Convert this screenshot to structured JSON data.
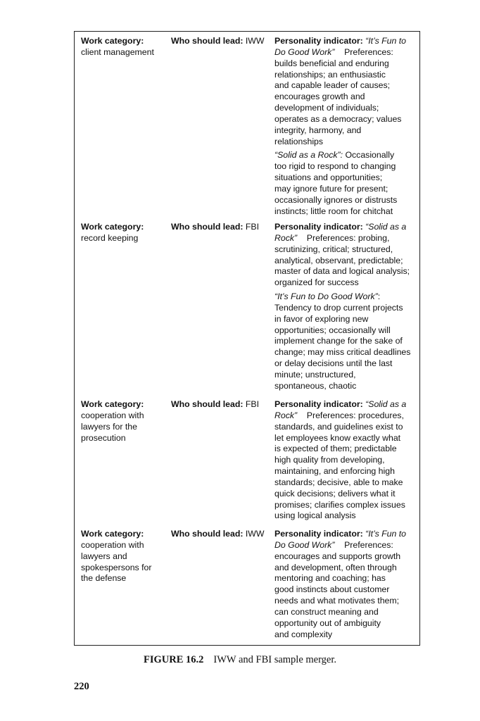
{
  "rows": [
    {
      "category_label": "Work category:",
      "category": [
        "client management"
      ],
      "lead_label": "Who should lead:",
      "lead": "IWW",
      "paragraphs": [
        [
          [
            [
              "b",
              "Personality indicator: "
            ],
            [
              "i",
              "“It’s Fun to"
            ]
          ],
          [
            [
              "i",
              "Do Good Work”"
            ],
            [
              "n",
              "    Preferences:"
            ]
          ],
          [
            [
              "n",
              "builds beneficial and enduring"
            ]
          ],
          [
            [
              "n",
              "relationships; an enthusiastic"
            ]
          ],
          [
            [
              "n",
              "and capable leader of causes;"
            ]
          ],
          [
            [
              "n",
              "encourages growth and"
            ]
          ],
          [
            [
              "n",
              "development of individuals;"
            ]
          ],
          [
            [
              "n",
              "operates as a democracy; values"
            ]
          ],
          [
            [
              "n",
              "integrity, harmony, and"
            ]
          ],
          [
            [
              "n",
              "relationships"
            ]
          ]
        ],
        [
          [
            [
              "i",
              "“Solid as a Rock”:"
            ],
            [
              "n",
              " Occasionally"
            ]
          ],
          [
            [
              "n",
              "too rigid to respond to changing"
            ]
          ],
          [
            [
              "n",
              "situations and opportunities;"
            ]
          ],
          [
            [
              "n",
              "may ignore future for present;"
            ]
          ],
          [
            [
              "n",
              "occasionally ignores or distrusts"
            ]
          ],
          [
            [
              "n",
              "instincts; little room for chitchat"
            ]
          ]
        ]
      ]
    },
    {
      "category_label": "Work category:",
      "category": [
        "record keeping"
      ],
      "lead_label": "Who should lead:",
      "lead": "FBI",
      "paragraphs": [
        [
          [
            [
              "b",
              "Personality indicator: "
            ],
            [
              "i",
              "“Solid as a"
            ]
          ],
          [
            [
              "i",
              "Rock”"
            ],
            [
              "n",
              "    Preferences: probing,"
            ]
          ],
          [
            [
              "n",
              "scrutinizing, critical; structured,"
            ]
          ],
          [
            [
              "n",
              "analytical, observant, predictable;"
            ]
          ],
          [
            [
              "n",
              "master of data and logical analysis;"
            ]
          ],
          [
            [
              "n",
              "organized for success"
            ]
          ]
        ],
        [
          [
            [
              "i",
              "“It’s Fun to Do Good Work”"
            ],
            [
              "n",
              ":"
            ]
          ],
          [
            [
              "n",
              "Tendency to drop current projects"
            ]
          ],
          [
            [
              "n",
              "in favor of exploring new"
            ]
          ],
          [
            [
              "n",
              "opportunities; occasionally will"
            ]
          ],
          [
            [
              "n",
              "implement change for the sake of"
            ]
          ],
          [
            [
              "n",
              "change; may miss critical deadlines"
            ]
          ],
          [
            [
              "n",
              "or delay decisions until the last"
            ]
          ],
          [
            [
              "n",
              "minute; unstructured,"
            ]
          ],
          [
            [
              "n",
              "spontaneous, chaotic"
            ]
          ]
        ]
      ]
    },
    {
      "category_label": "Work category:",
      "category": [
        "cooperation with",
        "lawyers for the",
        "prosecution"
      ],
      "lead_label": "Who should lead:",
      "lead": "FBI",
      "paragraphs": [
        [
          [
            [
              "b",
              "Personality indicator: "
            ],
            [
              "i",
              "“Solid as a"
            ]
          ],
          [
            [
              "i",
              "Rock”"
            ],
            [
              "n",
              "    Preferences: procedures,"
            ]
          ],
          [
            [
              "n",
              "standards, and guidelines exist to"
            ]
          ],
          [
            [
              "n",
              "let employees know exactly what"
            ]
          ],
          [
            [
              "n",
              "is expected of them; predictable"
            ]
          ],
          [
            [
              "n",
              "high quality from developing,"
            ]
          ],
          [
            [
              "n",
              "maintaining, and enforcing high"
            ]
          ],
          [
            [
              "n",
              "standards; decisive, able to make"
            ]
          ],
          [
            [
              "n",
              "quick decisions; delivers what it"
            ]
          ],
          [
            [
              "n",
              "promises; clarifies complex issues"
            ]
          ],
          [
            [
              "n",
              "using logical analysis"
            ]
          ]
        ]
      ]
    },
    {
      "category_label": "Work category:",
      "category": [
        "cooperation with",
        "lawyers and",
        "spokespersons for",
        "the defense"
      ],
      "lead_label": "Who should lead:",
      "lead": "IWW",
      "paragraphs": [
        [
          [
            [
              "b",
              "Personality indicator: "
            ],
            [
              "i",
              "“It’s Fun to"
            ]
          ],
          [
            [
              "i",
              "Do Good Work”"
            ],
            [
              "n",
              "    Preferences:"
            ]
          ],
          [
            [
              "n",
              "encourages and supports growth"
            ]
          ],
          [
            [
              "n",
              "and development, often through"
            ]
          ],
          [
            [
              "n",
              "mentoring and coaching; has"
            ]
          ],
          [
            [
              "n",
              "good instincts about customer"
            ]
          ],
          [
            [
              "n",
              "needs and what motivates them;"
            ]
          ],
          [
            [
              "n",
              "can construct meaning and"
            ]
          ],
          [
            [
              "n",
              "opportunity out of ambiguity"
            ]
          ],
          [
            [
              "n",
              "and complexity"
            ]
          ]
        ]
      ]
    }
  ],
  "caption": {
    "figure": "FIGURE 16.2",
    "text": "IWW and FBI sample merger."
  },
  "page_number": "220"
}
